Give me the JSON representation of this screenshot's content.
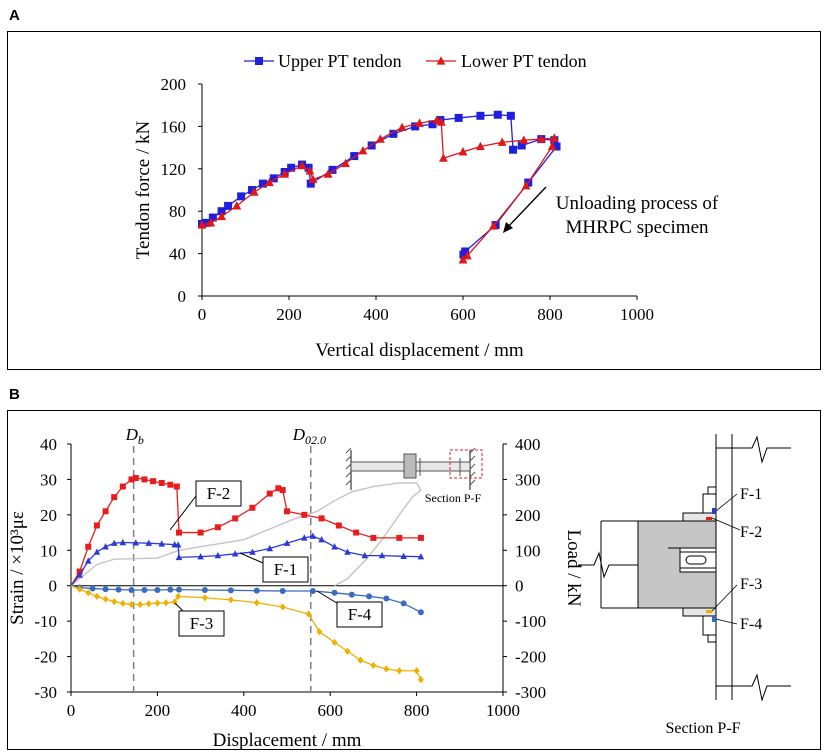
{
  "panels": {
    "a_label": "A",
    "b_label": "B"
  },
  "chart_data": [
    {
      "id": "A",
      "type": "line",
      "xlabel": "Vertical displacement / mm",
      "ylabel": "Tendon force / kN",
      "xlim": [
        0,
        1000
      ],
      "ylim": [
        0,
        200
      ],
      "xticks": [
        0,
        200,
        400,
        600,
        800,
        1000
      ],
      "yticks": [
        0,
        40,
        80,
        120,
        160,
        200
      ],
      "legend": "top",
      "series": [
        {
          "name": "Upper PT tendon",
          "color": "#1f1fe0",
          "marker": "square",
          "points": [
            [
              0,
              68
            ],
            [
              10,
              69
            ],
            [
              25,
              74
            ],
            [
              45,
              80
            ],
            [
              60,
              85
            ],
            [
              90,
              94
            ],
            [
              115,
              100
            ],
            [
              140,
              106
            ],
            [
              165,
              111
            ],
            [
              190,
              117
            ],
            [
              205,
              121
            ],
            [
              230,
              124
            ],
            [
              245,
              121
            ],
            [
              250,
              106
            ],
            [
              300,
              119
            ],
            [
              350,
              132
            ],
            [
              390,
              142
            ],
            [
              440,
              153
            ],
            [
              490,
              160
            ],
            [
              530,
              162
            ],
            [
              548,
              166
            ],
            [
              590,
              168
            ],
            [
              640,
              170
            ],
            [
              680,
              171
            ],
            [
              710,
              170
            ],
            [
              715,
              138
            ],
            [
              735,
              142
            ],
            [
              780,
              148
            ],
            [
              810,
              147
            ],
            [
              815,
              141
            ],
            [
              750,
              107
            ],
            [
              675,
              67
            ],
            [
              605,
              42
            ],
            [
              601,
              39
            ]
          ]
        },
        {
          "name": "Lower PT tendon",
          "color": "#e01818",
          "marker": "triangle",
          "points": [
            [
              0,
              67
            ],
            [
              20,
              69
            ],
            [
              45,
              75
            ],
            [
              80,
              85
            ],
            [
              120,
              98
            ],
            [
              155,
              107
            ],
            [
              190,
              115
            ],
            [
              230,
              123
            ],
            [
              248,
              118
            ],
            [
              255,
              110
            ],
            [
              290,
              115
            ],
            [
              330,
              125
            ],
            [
              370,
              137
            ],
            [
              410,
              148
            ],
            [
              460,
              159
            ],
            [
              500,
              163
            ],
            [
              540,
              166
            ],
            [
              550,
              164
            ],
            [
              555,
              130
            ],
            [
              600,
              136
            ],
            [
              640,
              141
            ],
            [
              690,
              145
            ],
            [
              740,
              147
            ],
            [
              780,
              148
            ],
            [
              810,
              149
            ],
            [
              805,
              141
            ],
            [
              745,
              104
            ],
            [
              670,
              66
            ],
            [
              610,
              38
            ],
            [
              600,
              34
            ]
          ]
        }
      ],
      "annotation": {
        "line1": "Unloading process of",
        "line2": "MHRPC specimen"
      }
    },
    {
      "id": "B",
      "type": "line",
      "xlabel": "Displacement / mm",
      "ylabel_left": "Strain / ×10³με",
      "ylabel_right": "Load / kN",
      "xlim": [
        0,
        1000
      ],
      "ylim_left": [
        -30,
        40
      ],
      "ylim_right": [
        -300,
        400
      ],
      "xticks": [
        0,
        200,
        400,
        600,
        800,
        1000
      ],
      "yticks_left": [
        -30,
        -20,
        -10,
        0,
        10,
        20,
        30,
        40
      ],
      "yticks_right": [
        -300,
        -200,
        -100,
        0,
        100,
        200,
        300,
        400
      ],
      "vlines": [
        {
          "x": 145,
          "label_main": "D",
          "label_sub": "b"
        },
        {
          "x": 555,
          "label_main": "D",
          "label_sub": "02.0"
        }
      ],
      "series": [
        {
          "name": "F-2",
          "color": "#e81e1e",
          "marker": "square",
          "points": [
            [
              0,
              0
            ],
            [
              20,
              4
            ],
            [
              40,
              11
            ],
            [
              60,
              17
            ],
            [
              80,
              21
            ],
            [
              100,
              25
            ],
            [
              120,
              28
            ],
            [
              140,
              30
            ],
            [
              150,
              30.4
            ],
            [
              170,
              30
            ],
            [
              190,
              29.5
            ],
            [
              210,
              29
            ],
            [
              230,
              28.5
            ],
            [
              245,
              28
            ],
            [
              250,
              15
            ],
            [
              300,
              15
            ],
            [
              340,
              16.5
            ],
            [
              380,
              19
            ],
            [
              420,
              22
            ],
            [
              460,
              26
            ],
            [
              480,
              27.5
            ],
            [
              490,
              27
            ],
            [
              500,
              21
            ],
            [
              540,
              20
            ],
            [
              580,
              19
            ],
            [
              620,
              17
            ],
            [
              660,
              15
            ],
            [
              700,
              13.5
            ],
            [
              760,
              13.5
            ],
            [
              810,
              13.5
            ]
          ]
        },
        {
          "name": "F-1",
          "color": "#2b39d6",
          "marker": "triangle",
          "points": [
            [
              0,
              0
            ],
            [
              20,
              3
            ],
            [
              40,
              7
            ],
            [
              60,
              9.5
            ],
            [
              80,
              11
            ],
            [
              100,
              12
            ],
            [
              120,
              12.2
            ],
            [
              150,
              12.1
            ],
            [
              180,
              12
            ],
            [
              210,
              11.8
            ],
            [
              240,
              11.6
            ],
            [
              248,
              11.5
            ],
            [
              250,
              8
            ],
            [
              300,
              8.2
            ],
            [
              340,
              8.5
            ],
            [
              380,
              9
            ],
            [
              420,
              9.5
            ],
            [
              460,
              10.5
            ],
            [
              500,
              12
            ],
            [
              540,
              13.5
            ],
            [
              560,
              14
            ],
            [
              580,
              13
            ],
            [
              610,
              11
            ],
            [
              640,
              9.5
            ],
            [
              680,
              8.5
            ],
            [
              720,
              8.5
            ],
            [
              770,
              8.3
            ],
            [
              810,
              8.2
            ]
          ]
        },
        {
          "name": "F-4",
          "color": "#3a6bbf",
          "marker": "circle",
          "points": [
            [
              0,
              0
            ],
            [
              20,
              -0.5
            ],
            [
              50,
              -0.8
            ],
            [
              80,
              -1
            ],
            [
              110,
              -1.1
            ],
            [
              140,
              -1.2
            ],
            [
              170,
              -1.2
            ],
            [
              200,
              -1.2
            ],
            [
              230,
              -1.1
            ],
            [
              250,
              -1.1
            ],
            [
              310,
              -1.2
            ],
            [
              370,
              -1.3
            ],
            [
              430,
              -1.4
            ],
            [
              490,
              -1.5
            ],
            [
              560,
              -1.5
            ],
            [
              610,
              -2
            ],
            [
              650,
              -2.5
            ],
            [
              690,
              -3
            ],
            [
              730,
              -3.6
            ],
            [
              770,
              -5
            ],
            [
              810,
              -7.5
            ]
          ]
        },
        {
          "name": "F-3",
          "color": "#f0b000",
          "marker": "diamond",
          "points": [
            [
              0,
              0
            ],
            [
              20,
              -1
            ],
            [
              40,
              -2
            ],
            [
              60,
              -3
            ],
            [
              80,
              -3.8
            ],
            [
              100,
              -4.5
            ],
            [
              120,
              -5
            ],
            [
              140,
              -5.3
            ],
            [
              160,
              -5.3
            ],
            [
              180,
              -5.1
            ],
            [
              200,
              -4.9
            ],
            [
              220,
              -4.8
            ],
            [
              240,
              -4.6
            ],
            [
              248,
              -3
            ],
            [
              310,
              -3.4
            ],
            [
              370,
              -4
            ],
            [
              430,
              -4.8
            ],
            [
              490,
              -6
            ],
            [
              550,
              -8
            ],
            [
              575,
              -13
            ],
            [
              610,
              -16
            ],
            [
              640,
              -18.5
            ],
            [
              670,
              -21
            ],
            [
              700,
              -22.5
            ],
            [
              730,
              -23.5
            ],
            [
              760,
              -24
            ],
            [
              800,
              -24
            ],
            [
              810,
              -26.5
            ]
          ]
        }
      ],
      "load_series": {
        "name": "Load",
        "color": "#c4c4c4",
        "points": [
          [
            0,
            0
          ],
          [
            60,
            60
          ],
          [
            100,
            75
          ],
          [
            200,
            78
          ],
          [
            250,
            100
          ],
          [
            300,
            110
          ],
          [
            400,
            130
          ],
          [
            480,
            170
          ],
          [
            520,
            190
          ],
          [
            570,
            210
          ],
          [
            610,
            240
          ],
          [
            650,
            265
          ],
          [
            700,
            280
          ],
          [
            760,
            290
          ],
          [
            800,
            290
          ],
          [
            810,
            270
          ],
          [
            790,
            250
          ],
          [
            760,
            200
          ],
          [
            720,
            130
          ],
          [
            680,
            70
          ],
          [
            640,
            20
          ],
          [
            610,
            0
          ]
        ]
      },
      "labels": [
        "F-2",
        "F-1",
        "F-3",
        "F-4"
      ],
      "inset_label": "Section P-F"
    }
  ],
  "section_drawing": {
    "title": "Section P-F",
    "labels": [
      "F-1",
      "F-2",
      "F-3",
      "F-4"
    ]
  }
}
